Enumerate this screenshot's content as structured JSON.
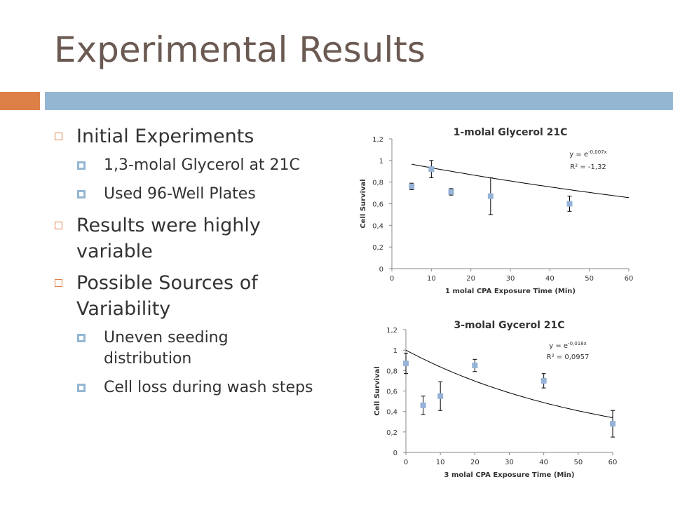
{
  "slide": {
    "title": "Experimental Results",
    "accent_color": "#dd8047",
    "band_color": "#94b6d2"
  },
  "bullets": [
    {
      "text": "Initial Experiments",
      "sub": [
        "1,3-molal Glycerol at 21C",
        "Used 96-Well Plates"
      ]
    },
    {
      "text": "Results were highly variable",
      "sub": []
    },
    {
      "text": "Possible Sources of Variability",
      "sub": [
        "Uneven seeding distribution",
        "Cell loss during wash steps"
      ]
    }
  ],
  "chart_data": [
    {
      "type": "scatter",
      "title": "1-molal Glycerol 21C",
      "xlabel": "1 molal CPA Exposure Time (Min)",
      "ylabel": "Cell Survival",
      "xlim": [
        0,
        60
      ],
      "ylim": [
        0,
        1.2
      ],
      "xticks": [
        "0",
        "10",
        "20",
        "30",
        "40",
        "50",
        "60"
      ],
      "yticks": [
        "0",
        "0,2",
        "0,4",
        "0,6",
        "0,8",
        "1",
        "1,2"
      ],
      "points": [
        {
          "x": 5,
          "y": 0.76,
          "err": 0.03
        },
        {
          "x": 10,
          "y": 0.92,
          "err": 0.08
        },
        {
          "x": 15,
          "y": 0.71,
          "err": 0.03
        },
        {
          "x": 25,
          "y": 0.67,
          "err": 0.17
        },
        {
          "x": 45,
          "y": 0.6,
          "err": 0.07
        }
      ],
      "trend": {
        "type": "exponential",
        "a": 1.0,
        "b": -0.007,
        "x_range": [
          5,
          60
        ]
      },
      "equation_base": "y = e",
      "equation_exp": "-0,007x",
      "r2_label": "R² = -1,32",
      "marker_color": "#95b3d7",
      "grid": false
    },
    {
      "type": "scatter",
      "title": "3-molal Gycerol  21C",
      "xlabel": "3 molal CPA Exposure Time (Min)",
      "ylabel": "Cell Survival",
      "xlim": [
        0,
        60
      ],
      "ylim": [
        0,
        1.2
      ],
      "xticks": [
        "0",
        "10",
        "20",
        "30",
        "40",
        "50",
        "60"
      ],
      "yticks": [
        "0",
        "0,2",
        "0,4",
        "0,6",
        "0,8",
        "1",
        "1,2"
      ],
      "points": [
        {
          "x": 0,
          "y": 0.87,
          "err": 0.1
        },
        {
          "x": 5,
          "y": 0.46,
          "err": 0.09
        },
        {
          "x": 10,
          "y": 0.55,
          "err": 0.14
        },
        {
          "x": 20,
          "y": 0.85,
          "err": 0.06
        },
        {
          "x": 40,
          "y": 0.7,
          "err": 0.07
        },
        {
          "x": 60,
          "y": 0.28,
          "err": 0.13
        }
      ],
      "trend": {
        "type": "exponential",
        "a": 1.0,
        "b": -0.018,
        "x_range": [
          0,
          60
        ]
      },
      "equation_base": "y = e",
      "equation_exp": "-0,018x",
      "r2_label": "R² = 0,0957",
      "marker_color": "#95b3d7",
      "grid": false
    }
  ]
}
